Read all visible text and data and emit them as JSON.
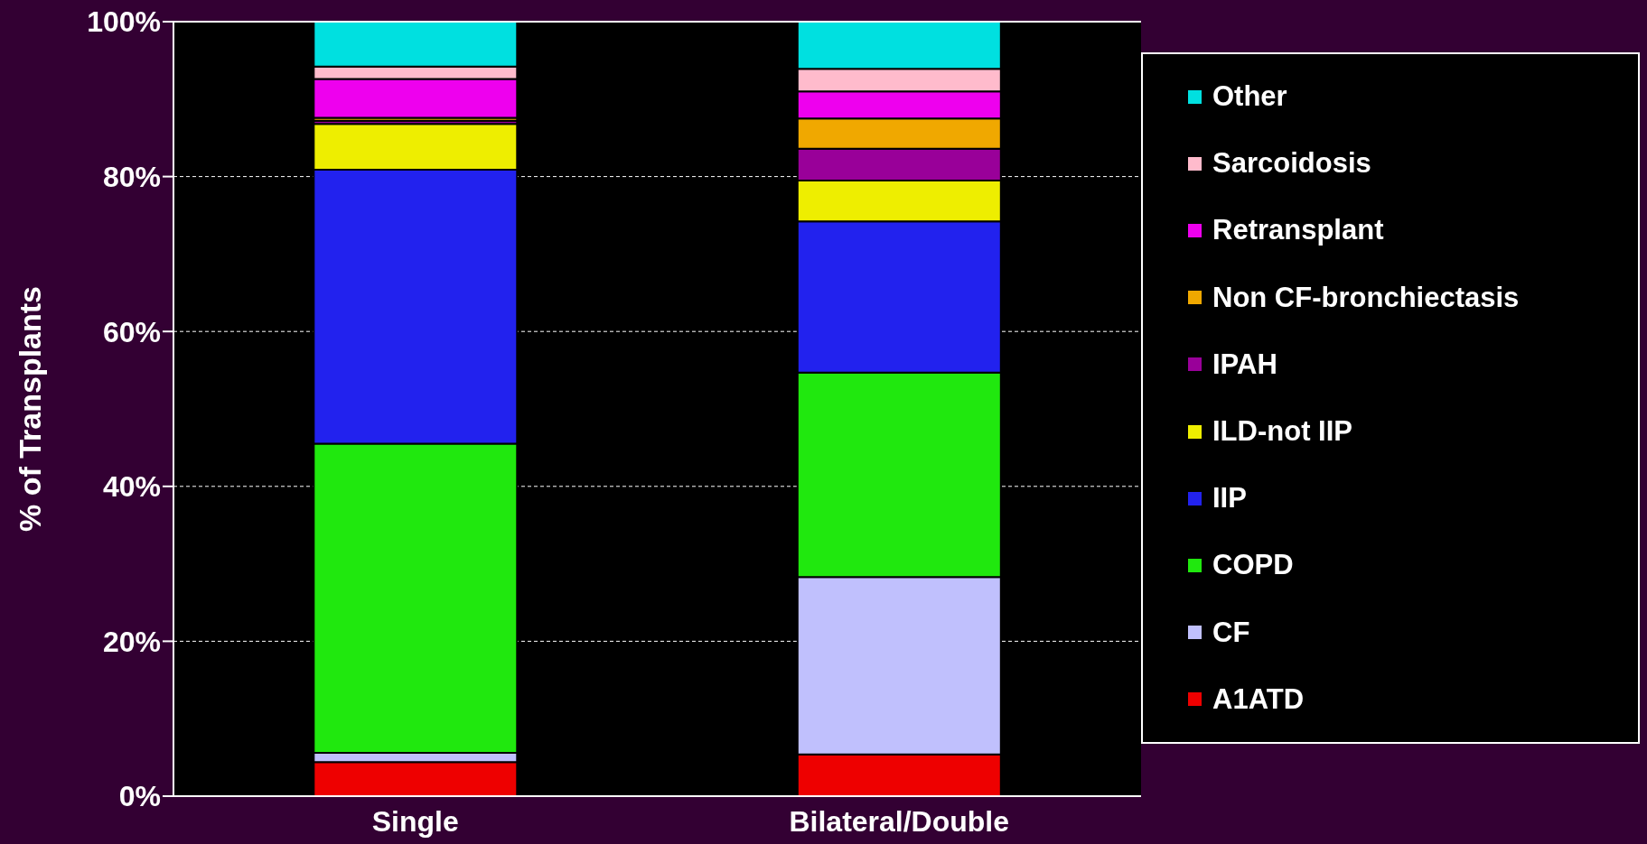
{
  "chart_data": {
    "type": "bar",
    "stacked": true,
    "ylabel": "% of Transplants",
    "categories": [
      "Single",
      "Bilateral/Double"
    ],
    "ylim": [
      0,
      100
    ],
    "yticks": [
      {
        "value": 0,
        "label": "0%"
      },
      {
        "value": 20,
        "label": "20%"
      },
      {
        "value": 40,
        "label": "40%"
      },
      {
        "value": 60,
        "label": "60%"
      },
      {
        "value": 80,
        "label": "80%"
      },
      {
        "value": 100,
        "label": "100%"
      }
    ],
    "grid": "y",
    "legend": "right",
    "series": [
      {
        "name": "A1ATD",
        "color": "#ee0000",
        "values": [
          4.4,
          5.4
        ]
      },
      {
        "name": "CF",
        "color": "#c0c0fd",
        "values": [
          1.2,
          22.9
        ]
      },
      {
        "name": "COPD",
        "color": "#20e80e",
        "values": [
          39.9,
          26.4
        ]
      },
      {
        "name": "IIP",
        "color": "#2222ee",
        "values": [
          35.4,
          19.5
        ]
      },
      {
        "name": "ILD-not IIP",
        "color": "#eeee00",
        "values": [
          5.9,
          5.3
        ]
      },
      {
        "name": "IPAH",
        "color": "#990099",
        "values": [
          0.4,
          4.1
        ]
      },
      {
        "name": "Non CF-bronchiectasis",
        "color": "#f0a800",
        "values": [
          0.4,
          3.9
        ]
      },
      {
        "name": "Retransplant",
        "color": "#ee00ee",
        "values": [
          5.0,
          3.5
        ]
      },
      {
        "name": "Sarcoidosis",
        "color": "#ffbbcc",
        "values": [
          1.6,
          2.9
        ]
      },
      {
        "name": "Other",
        "color": "#00e0e0",
        "values": [
          5.8,
          6.1
        ]
      }
    ]
  }
}
